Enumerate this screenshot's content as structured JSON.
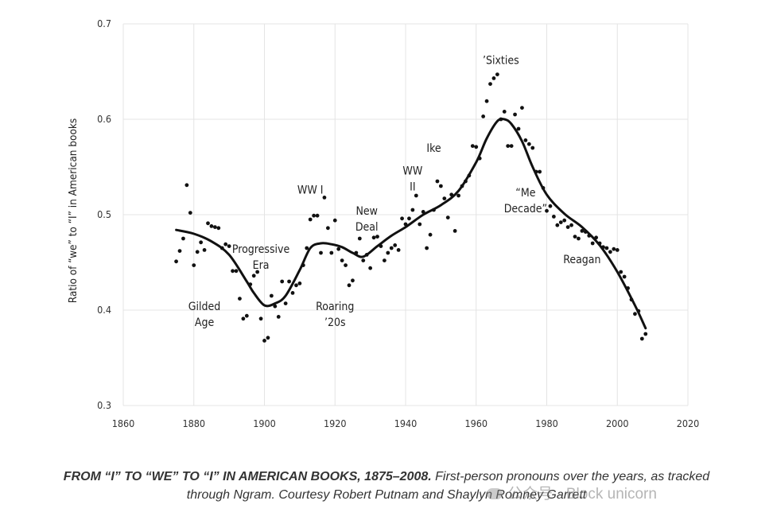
{
  "chart_data": {
    "type": "scatter",
    "title": "",
    "xlabel": "",
    "ylabel": "Ratio of “we” to “I” in American books",
    "xlim": [
      1860,
      2020
    ],
    "ylim": [
      0.3,
      0.7
    ],
    "xticks": [
      "1860",
      "1880",
      "1900",
      "1920",
      "1940",
      "1960",
      "1980",
      "2000",
      "2020"
    ],
    "yticks": [
      "0.3",
      "0.4",
      "0.5",
      "0.6",
      "0.7"
    ],
    "grid": true,
    "points": {
      "name": "yearly ratio",
      "x": [
        1875,
        1876,
        1877,
        1878,
        1879,
        1880,
        1881,
        1882,
        1883,
        1884,
        1885,
        1886,
        1887,
        1888,
        1889,
        1890,
        1891,
        1892,
        1893,
        1894,
        1895,
        1896,
        1897,
        1898,
        1899,
        1900,
        1901,
        1902,
        1903,
        1904,
        1905,
        1906,
        1907,
        1908,
        1909,
        1910,
        1911,
        1912,
        1913,
        1914,
        1915,
        1916,
        1917,
        1918,
        1919,
        1920,
        1921,
        1922,
        1923,
        1924,
        1925,
        1926,
        1927,
        1928,
        1929,
        1930,
        1931,
        1932,
        1933,
        1934,
        1935,
        1936,
        1937,
        1938,
        1939,
        1940,
        1941,
        1942,
        1943,
        1944,
        1945,
        1946,
        1947,
        1948,
        1949,
        1950,
        1951,
        1952,
        1953,
        1954,
        1955,
        1956,
        1957,
        1958,
        1959,
        1960,
        1961,
        1962,
        1963,
        1964,
        1965,
        1966,
        1967,
        1968,
        1969,
        1970,
        1971,
        1972,
        1973,
        1974,
        1975,
        1976,
        1977,
        1978,
        1979,
        1980,
        1981,
        1982,
        1983,
        1984,
        1985,
        1986,
        1987,
        1988,
        1989,
        1990,
        1991,
        1992,
        1993,
        1994,
        1995,
        1996,
        1997,
        1998,
        1999,
        2000,
        2001,
        2002,
        2003,
        2004,
        2005,
        2006,
        2007,
        2008
      ],
      "y": [
        0.451,
        0.462,
        0.475,
        0.531,
        0.502,
        0.447,
        0.461,
        0.471,
        0.463,
        0.491,
        0.488,
        0.487,
        0.486,
        0.465,
        0.469,
        0.467,
        0.441,
        0.441,
        0.412,
        0.391,
        0.394,
        0.427,
        0.436,
        0.44,
        0.391,
        0.368,
        0.371,
        0.415,
        0.404,
        0.393,
        0.43,
        0.407,
        0.43,
        0.418,
        0.426,
        0.428,
        0.447,
        0.465,
        0.495,
        0.499,
        0.499,
        0.46,
        0.518,
        0.486,
        0.46,
        0.494,
        0.464,
        0.452,
        0.447,
        0.426,
        0.431,
        0.46,
        0.475,
        0.452,
        0.458,
        0.444,
        0.476,
        0.477,
        0.467,
        0.452,
        0.46,
        0.465,
        0.468,
        0.463,
        0.496,
        0.49,
        0.496,
        0.505,
        0.52,
        0.49,
        0.503,
        0.465,
        0.479,
        0.505,
        0.535,
        0.53,
        0.517,
        0.497,
        0.521,
        0.483,
        0.52,
        0.53,
        0.535,
        0.541,
        0.572,
        0.571,
        0.559,
        0.603,
        0.619,
        0.637,
        0.643,
        0.647,
        0.6,
        0.608,
        0.572,
        0.572,
        0.605,
        0.59,
        0.612,
        0.578,
        0.574,
        0.57,
        0.545,
        0.545,
        0.528,
        0.504,
        0.509,
        0.498,
        0.489,
        0.492,
        0.494,
        0.487,
        0.489,
        0.477,
        0.475,
        0.483,
        0.482,
        0.478,
        0.47,
        0.476,
        0.47,
        0.466,
        0.465,
        0.461,
        0.464,
        0.463,
        0.44,
        0.435,
        0.423,
        0.411,
        0.396,
        0.399,
        0.37,
        0.375
      ]
    },
    "trend": {
      "name": "smoothed trend",
      "x": [
        1875,
        1880,
        1885,
        1890,
        1895,
        1897,
        1900,
        1903,
        1906,
        1910,
        1913,
        1916,
        1919,
        1922,
        1925,
        1928,
        1932,
        1936,
        1940,
        1945,
        1950,
        1955,
        1960,
        1963,
        1966,
        1968,
        1970,
        1973,
        1976,
        1980,
        1985,
        1990,
        1995,
        2000,
        2005,
        2008
      ],
      "y": [
        0.484,
        0.48,
        0.472,
        0.458,
        0.43,
        0.418,
        0.405,
        0.407,
        0.415,
        0.442,
        0.465,
        0.47,
        0.469,
        0.466,
        0.46,
        0.456,
        0.467,
        0.478,
        0.487,
        0.5,
        0.51,
        0.525,
        0.555,
        0.58,
        0.598,
        0.6,
        0.595,
        0.577,
        0.55,
        0.521,
        0.501,
        0.487,
        0.468,
        0.44,
        0.405,
        0.381
      ]
    },
    "annotations": [
      {
        "lines": [
          "Gilded",
          "Age"
        ],
        "x": 1883,
        "y": 0.4
      },
      {
        "lines": [
          "Progressive",
          "Era"
        ],
        "x": 1899,
        "y": 0.46
      },
      {
        "lines": [
          "WW I"
        ],
        "x": 1913,
        "y": 0.522
      },
      {
        "lines": [
          "Roaring",
          "’20s"
        ],
        "x": 1920,
        "y": 0.4
      },
      {
        "lines": [
          "New",
          "Deal"
        ],
        "x": 1929,
        "y": 0.5
      },
      {
        "lines": [
          "WW",
          "II"
        ],
        "x": 1942,
        "y": 0.542
      },
      {
        "lines": [
          "Ike"
        ],
        "x": 1948,
        "y": 0.566
      },
      {
        "lines": [
          "’Sixties"
        ],
        "x": 1967,
        "y": 0.658
      },
      {
        "lines": [
          "“Me",
          "Decade”"
        ],
        "x": 1974,
        "y": 0.519
      },
      {
        "lines": [
          "Reagan"
        ],
        "x": 1990,
        "y": 0.449
      }
    ]
  },
  "caption": {
    "bold": "FROM “I” TO “WE” TO “I” IN AMERICAN BOOKS, 1875–2008.",
    "line1_rest": " First-person pronouns over the years, as tracked",
    "line2": "through Ngram. Courtesy Robert Putnam and Shaylyn Romney Garrett"
  },
  "watermark": {
    "icon": "wechat-icon",
    "text": "公众号 · Block unicorn"
  },
  "colors": {
    "dot": "#111111",
    "trend": "#111111",
    "grid": "#e4e4e4"
  }
}
